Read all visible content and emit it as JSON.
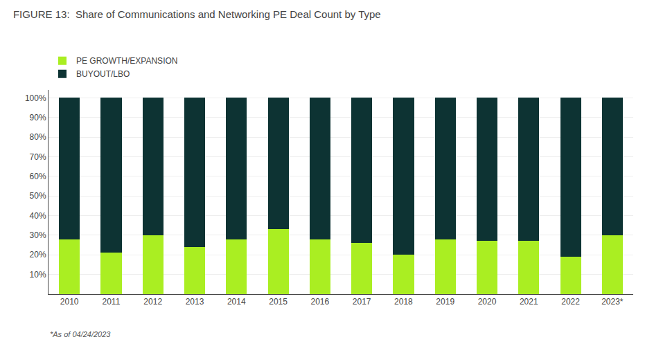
{
  "chart_data": {
    "type": "bar",
    "title": "FIGURE 13:  Share of Communications and Networking PE Deal Count by Type",
    "categories": [
      "2010",
      "2011",
      "2012",
      "2013",
      "2014",
      "2015",
      "2016",
      "2017",
      "2018",
      "2019",
      "2020",
      "2021",
      "2022",
      "2023*"
    ],
    "series": [
      {
        "name": "PE GROWTH/EXPANSION",
        "color": "#aaee22",
        "values": [
          28,
          21,
          30,
          24,
          28,
          33,
          28,
          26,
          20,
          28,
          27,
          27,
          19,
          30
        ]
      },
      {
        "name": "BUYOUT/LBO",
        "color": "#0d3333",
        "values": [
          72,
          79,
          70,
          76,
          72,
          67,
          72,
          74,
          80,
          72,
          73,
          73,
          81,
          70
        ]
      }
    ],
    "stacked": true,
    "ylim": [
      0,
      104
    ],
    "yticks": [
      {
        "value": 10,
        "label": "10%"
      },
      {
        "value": 20,
        "label": "20%"
      },
      {
        "value": 30,
        "label": "30%"
      },
      {
        "value": 40,
        "label": "40%"
      },
      {
        "value": 50,
        "label": "50%"
      },
      {
        "value": 60,
        "label": "60%"
      },
      {
        "value": 70,
        "label": "70%"
      },
      {
        "value": 80,
        "label": "80%"
      },
      {
        "value": 90,
        "label": "90%"
      },
      {
        "value": 100,
        "label": "100%"
      }
    ],
    "grid": true,
    "legend": "upper left",
    "annotations": [
      "*As of 04/24/2023"
    ]
  }
}
